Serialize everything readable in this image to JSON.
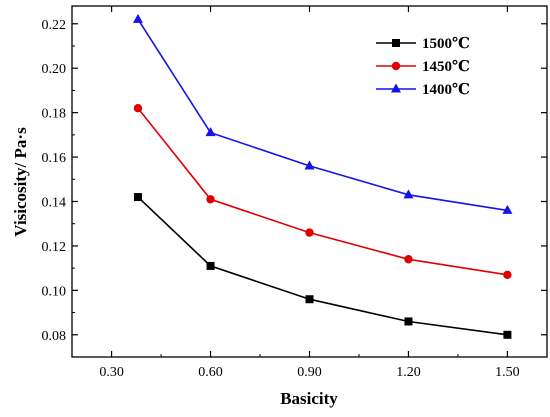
{
  "chart_data": {
    "type": "line",
    "x": [
      0.38,
      0.6,
      0.9,
      1.2,
      1.5
    ],
    "series": [
      {
        "name": "1500℃",
        "color": "#000000",
        "marker": "square",
        "values": [
          0.142,
          0.111,
          0.096,
          0.086,
          0.08
        ]
      },
      {
        "name": "1450℃",
        "color": "#e00000",
        "marker": "circle",
        "values": [
          0.182,
          0.141,
          0.126,
          0.114,
          0.107
        ]
      },
      {
        "name": "1400℃",
        "color": "#1414e6",
        "marker": "triangle",
        "values": [
          0.222,
          0.171,
          0.156,
          0.143,
          0.136
        ]
      }
    ],
    "xlabel": "Basicity",
    "ylabel": "Visicosity/ Pa·s",
    "xlim": [
      0.18,
      1.62
    ],
    "ylim": [
      0.07,
      0.228
    ],
    "xticks": [
      "0.30",
      "0.60",
      "0.90",
      "1.20",
      "1.50"
    ],
    "xtick_values": [
      0.3,
      0.6,
      0.9,
      1.2,
      1.5
    ],
    "yticks": [
      "0.08",
      "0.10",
      "0.12",
      "0.14",
      "0.16",
      "0.18",
      "0.20",
      "0.22"
    ],
    "ytick_values": [
      0.08,
      0.1,
      0.12,
      0.14,
      0.16,
      0.18,
      0.2,
      0.22
    ],
    "grid": false,
    "legend_position": "top-right"
  }
}
